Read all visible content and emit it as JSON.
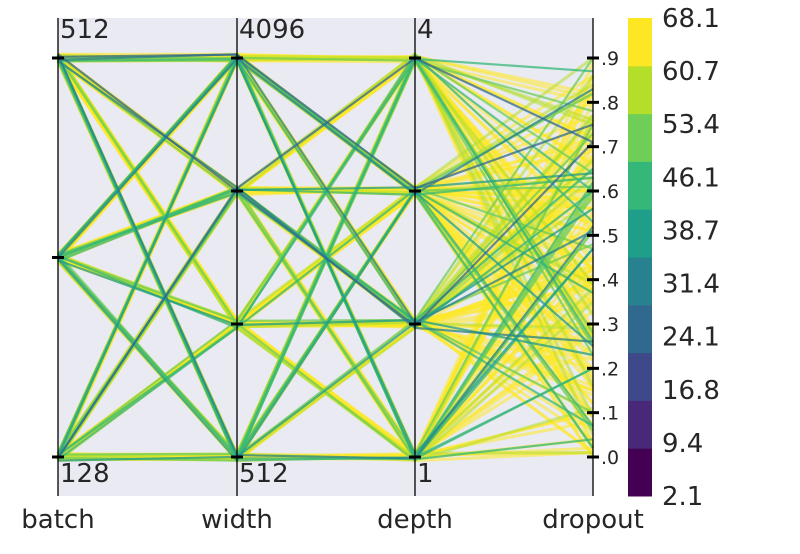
{
  "chart_data": {
    "type": "parallel-coordinates",
    "axes": [
      {
        "name": "batch",
        "label": "batch",
        "min": 128,
        "max": 512,
        "top_label": "512",
        "bottom_label": "128",
        "levels": [
          128,
          256,
          512
        ],
        "scale": "log"
      },
      {
        "name": "width",
        "label": "width",
        "min": 512,
        "max": 4096,
        "top_label": "4096",
        "bottom_label": "512",
        "levels": [
          512,
          1024,
          2048,
          4096
        ],
        "scale": "log"
      },
      {
        "name": "depth",
        "label": "depth",
        "min": 1,
        "max": 4,
        "top_label": "4",
        "bottom_label": "1",
        "levels": [
          1,
          2,
          3,
          4
        ],
        "scale": "linear"
      },
      {
        "name": "dropout",
        "label": "dropout",
        "min": 0,
        "max": 0.9,
        "ticks": [
          {
            "value": 0.0,
            "label": ".0"
          },
          {
            "value": 0.1,
            "label": ".1"
          },
          {
            "value": 0.2,
            "label": ".2"
          },
          {
            "value": 0.3,
            "label": ".3"
          },
          {
            "value": 0.4,
            "label": ".4"
          },
          {
            "value": 0.5,
            "label": ".5"
          },
          {
            "value": 0.6,
            "label": ".6"
          },
          {
            "value": 0.7,
            "label": ".7"
          },
          {
            "value": 0.8,
            "label": ".8"
          },
          {
            "value": 0.9,
            "label": ".9"
          }
        ],
        "scale": "linear"
      }
    ],
    "colorbar": {
      "colormap": "viridis",
      "min": 2.1,
      "max": 68.1,
      "tick_labels": [
        "2.1",
        "9.4",
        "16.8",
        "24.1",
        "31.4",
        "38.7",
        "46.1",
        "53.4",
        "60.7",
        "68.1"
      ],
      "bands": [
        "#440154",
        "#482878",
        "#3e4989",
        "#31688e",
        "#26828e",
        "#1f9e89",
        "#35b779",
        "#6ece58",
        "#b5de2b",
        "#fde725"
      ]
    },
    "background": "#eaeaf2"
  }
}
